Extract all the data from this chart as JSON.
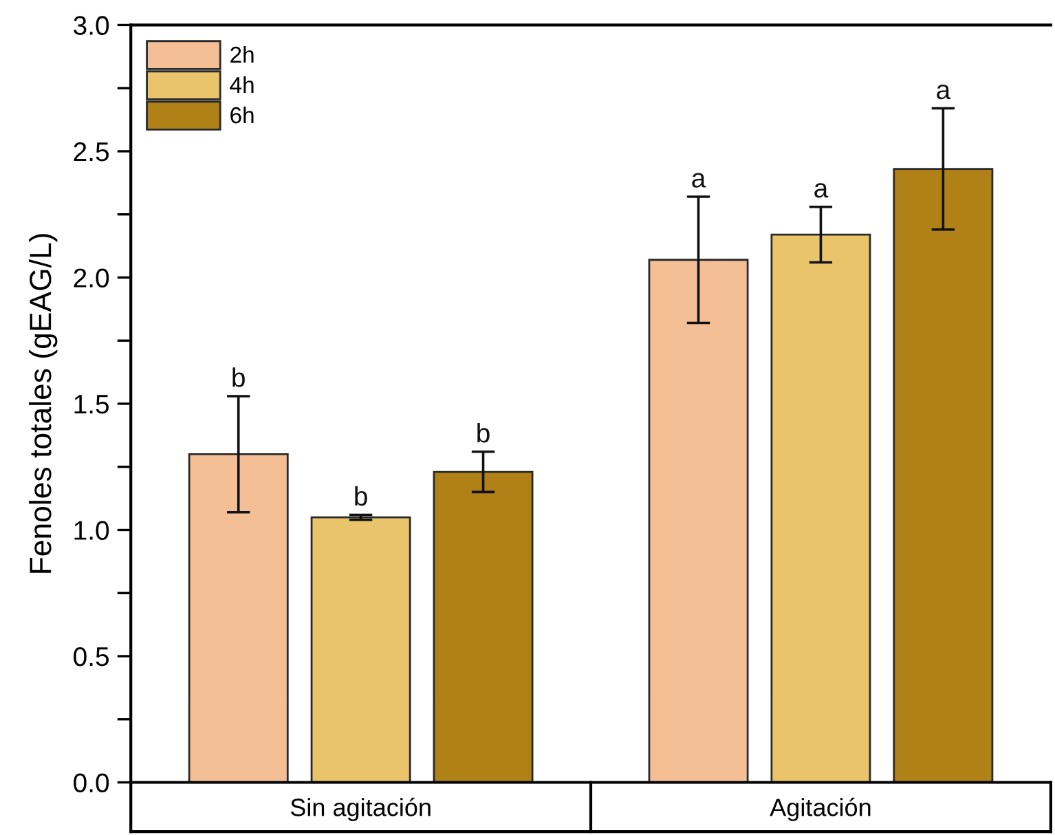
{
  "chart_data": {
    "type": "bar",
    "ylabel": "Fenoles totales (gEAG/L)",
    "categories": [
      "Sin agitación",
      "Agitación"
    ],
    "series": [
      {
        "name": "2h",
        "color": "#f5bf95",
        "values": [
          1.3,
          2.07
        ],
        "errors": [
          0.23,
          0.25
        ],
        "value_labels": [
          "b",
          "a"
        ]
      },
      {
        "name": "4h",
        "color": "#e9c46a",
        "values": [
          1.05,
          2.17
        ],
        "errors": [
          0.01,
          0.11
        ],
        "value_labels": [
          "b",
          "a"
        ]
      },
      {
        "name": "6h",
        "color": "#b08116",
        "values": [
          1.23,
          2.43
        ],
        "errors": [
          0.08,
          0.24
        ],
        "value_labels": [
          "b",
          "a"
        ]
      }
    ],
    "ylim": [
      0,
      3.0
    ],
    "yticks": [
      {
        "value": 0,
        "label": "0.0"
      },
      {
        "value": 0.25,
        "label": null
      },
      0.5,
      {
        "value": 0.75,
        "label": null
      },
      {
        "value": 1.0,
        "label": "1.0"
      },
      {
        "value": 1.25,
        "label": null
      },
      1.5,
      {
        "value": 1.75,
        "label": null
      },
      {
        "value": 2.0,
        "label": "2.0"
      },
      {
        "value": 2.25,
        "label": null
      },
      2.5,
      {
        "value": 2.75,
        "label": null
      },
      {
        "value": 3.0,
        "label": "3.0"
      }
    ],
    "legend": "top left",
    "grid": false
  }
}
